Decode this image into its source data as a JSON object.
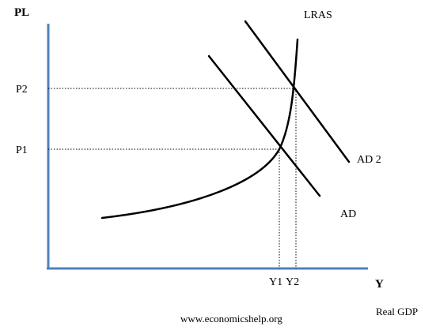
{
  "axes": {
    "y_label": "PL",
    "x_label": "Y",
    "x_caption": "Real GDP"
  },
  "price_levels": {
    "p1": "P1",
    "p2": "P2"
  },
  "outputs": {
    "y1": "Y1",
    "y2": "Y2"
  },
  "curves": {
    "lras": "LRAS",
    "ad1": "AD",
    "ad2": "AD 2"
  },
  "footer": {
    "source": "www.economicshelp.org"
  },
  "colors": {
    "axis": "#4f81bd",
    "curve": "#000000",
    "guide": "#000000"
  }
}
